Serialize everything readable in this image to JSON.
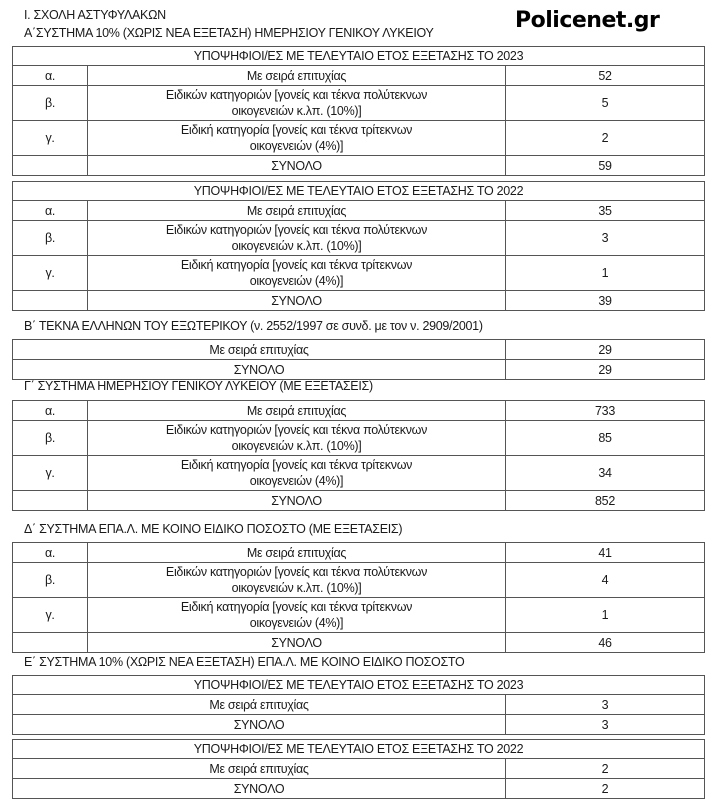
{
  "brand": "Policenet.gr",
  "title": "Ι. ΣΧΟΛΗ ΑΣΤΥΦΥΛΑΚΩΝ",
  "sections": [
    {
      "heading": "Α΄ΣΥΣΤΗΜΑ 10% (ΧΩΡΙΣ ΝΕΑ ΕΞΕΤΑΣΗ) ΗΜΕΡΗΣΙΟΥ ΓΕΝΙΚΟΥ ΛΥΚΕΙΟΥ",
      "tables": [
        {
          "header": "ΥΠΟΨΗΦΙΟΙ/ΕΣ ΜΕ ΤΕΛΕΥΤΑΙΟ ΕΤΟΣ ΕΞΕΤΑΣΗΣ ΤΟ 2023",
          "rows": [
            {
              "mark": "α.",
              "label": "Με σειρά επιτυχίας",
              "value": "52"
            },
            {
              "mark": "β.",
              "label": "Ειδικών κατηγοριών [γονείς και τέκνα πολύτεκνων",
              "label2": "οικογενειών κ.λπ. (10%)]",
              "value": "5"
            },
            {
              "mark": "γ.",
              "label": "Ειδική κατηγορία [γονείς και τέκνα τρίτεκνων",
              "label2": "οικογενειών (4%)]",
              "value": "2"
            },
            {
              "mark": "",
              "label": "ΣΥΝΟΛΟ",
              "value": "59"
            }
          ]
        },
        {
          "header": "ΥΠΟΨΗΦΙΟΙ/ΕΣ ΜΕ ΤΕΛΕΥΤΑΙΟ ΕΤΟΣ ΕΞΕΤΑΣΗΣ ΤΟ 2022",
          "rows": [
            {
              "mark": "α.",
              "label": "Με σειρά επιτυχίας",
              "value": "35"
            },
            {
              "mark": "β.",
              "label": "Ειδικών κατηγοριών [γονείς και τέκνα πολύτεκνων",
              "label2": "οικογενειών κ.λπ. (10%)]",
              "value": "3"
            },
            {
              "mark": "γ.",
              "label": "Ειδική κατηγορία [γονείς και τέκνα τρίτεκνων",
              "label2": "οικογενειών (4%)]",
              "value": "1"
            },
            {
              "mark": "",
              "label": "ΣΥΝΟΛΟ",
              "value": "39"
            }
          ]
        }
      ]
    },
    {
      "heading": "Β΄ ΤΕΚΝΑ ΕΛΛΗΝΩΝ ΤΟΥ ΕΞΩΤΕΡΙΚΟΥ (ν. 2552/1997 σε συνδ. με τον ν. 2909/2001)",
      "tables": [
        {
          "rows": [
            {
              "label": "Με σειρά επιτυχίας",
              "value": "29"
            },
            {
              "label": "ΣΥΝΟΛΟ",
              "value": "29"
            }
          ]
        }
      ]
    },
    {
      "heading": "Γ΄ ΣΥΣΤΗΜΑ ΗΜΕΡΗΣΙΟΥ ΓΕΝΙΚΟΥ ΛΥΚΕΙΟΥ (ΜΕ ΕΞΕΤΑΣΕΙΣ)",
      "tables": [
        {
          "rows": [
            {
              "mark": "α.",
              "label": "Με σειρά επιτυχίας",
              "value": "733"
            },
            {
              "mark": "β.",
              "label": "Ειδικών κατηγοριών [γονείς και τέκνα πολύτεκνων",
              "label2": "οικογενειών κ.λπ. (10%)]",
              "value": "85"
            },
            {
              "mark": "γ.",
              "label": "Ειδική κατηγορία [γονείς και τέκνα τρίτεκνων",
              "label2": "οικογενειών (4%)]",
              "value": "34"
            },
            {
              "mark": "",
              "label": "ΣΥΝΟΛΟ",
              "value": "852"
            }
          ]
        }
      ]
    },
    {
      "heading": "Δ΄ ΣΥΣΤΗΜΑ ΕΠΑ.Λ. ΜΕ ΚΟΙΝΟ ΕΙΔΙΚΟ ΠΟΣΟΣΤΟ (ΜΕ ΕΞΕΤΑΣΕΙΣ)",
      "tables": [
        {
          "rows": [
            {
              "mark": "α.",
              "label": "Με σειρά επιτυχίας",
              "value": "41"
            },
            {
              "mark": "β.",
              "label": "Ειδικών κατηγοριών [γονείς και τέκνα πολύτεκνων",
              "label2": "οικογενειών κ.λπ. (10%)]",
              "value": "4"
            },
            {
              "mark": "γ.",
              "label": "Ειδική κατηγορία [γονείς και τέκνα τρίτεκνων",
              "label2": "οικογενειών (4%)]",
              "value": "1"
            },
            {
              "mark": "",
              "label": "ΣΥΝΟΛΟ",
              "value": "46"
            }
          ]
        }
      ]
    },
    {
      "heading": "Ε΄ ΣΥΣΤΗΜΑ 10% (ΧΩΡΙΣ ΝΕΑ ΕΞΕΤΑΣΗ) ΕΠΑ.Λ. ΜΕ ΚΟΙΝΟ ΕΙΔΙΚΟ ΠΟΣΟΣΤΟ",
      "tables": [
        {
          "header": "ΥΠΟΨΗΦΙΟΙ/ΕΣ ΜΕ ΤΕΛΕΥΤΑΙΟ ΕΤΟΣ ΕΞΕΤΑΣΗΣ ΤΟ 2023",
          "rows": [
            {
              "label": "Με σειρά επιτυχίας",
              "value": "3"
            },
            {
              "label": "ΣΥΝΟΛΟ",
              "value": "3"
            }
          ]
        },
        {
          "header": "ΥΠΟΨΗΦΙΟΙ/ΕΣ ΜΕ ΤΕΛΕΥΤΑΙΟ ΕΤΟΣ ΕΞΕΤΑΣΗΣ ΤΟ 2022",
          "rows": [
            {
              "label": "Με σειρά επιτυχίας",
              "value": "2"
            },
            {
              "label": "ΣΥΝΟΛΟ",
              "value": "2"
            }
          ]
        }
      ]
    }
  ]
}
